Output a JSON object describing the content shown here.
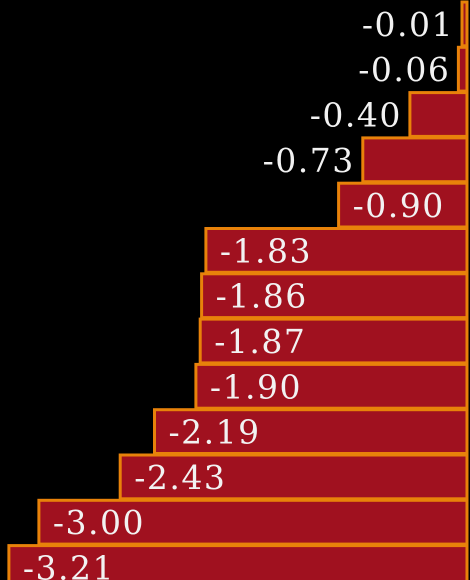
{
  "chart_data": {
    "type": "bar",
    "orientation": "horizontal",
    "values": [
      -0.01,
      -0.06,
      -0.4,
      -0.73,
      -0.9,
      -1.83,
      -1.86,
      -1.87,
      -1.9,
      -2.19,
      -2.43,
      -3.0,
      -3.21
    ],
    "labels": [
      "-0.01",
      "-0.06",
      "-0.40",
      "-0.73",
      "-0.90",
      "-1.83",
      "-1.86",
      "-1.87",
      "-1.90",
      "-2.19",
      "-2.43",
      "-3.00",
      "-3.21"
    ],
    "title": "",
    "xlabel": "",
    "ylabel": "",
    "colors": {
      "background": "#000000",
      "bar_fill": "#A0111F",
      "bar_edge": "#E8820A",
      "label_text": "#F2F2F2"
    }
  }
}
